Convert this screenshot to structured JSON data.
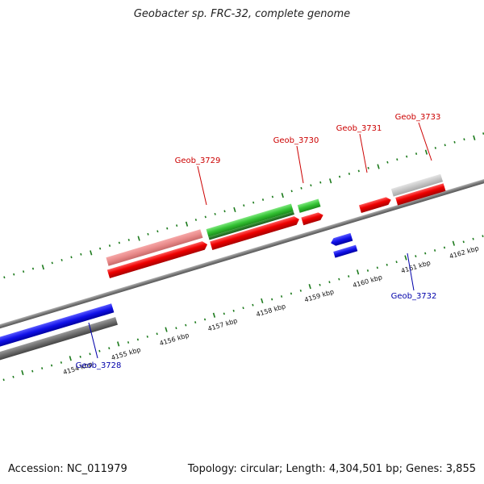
{
  "title": "Geobacter sp. FRC-32, complete genome",
  "footer": {
    "accession": "Accession: NC_011979",
    "summary": "Topology: circular; Length: 4,304,501 bp; Genes: 3,855"
  },
  "colors": {
    "tick": "#1c7a1c",
    "backbone": "#7a7a7a",
    "forward_label": "#cc0000",
    "reverse_label": "#0000aa"
  },
  "kbp_labels": [
    {
      "text": "4154 kbp",
      "kbp": 4154
    },
    {
      "text": "4155 kbp",
      "kbp": 4155
    },
    {
      "text": "4156 kbp",
      "kbp": 4156
    },
    {
      "text": "4157 kbp",
      "kbp": 4157
    },
    {
      "text": "4158 kbp",
      "kbp": 4158
    },
    {
      "text": "4159 kbp",
      "kbp": 4159
    },
    {
      "text": "4160 kbp",
      "kbp": 4160
    },
    {
      "text": "4161 kbp",
      "kbp": 4161
    },
    {
      "text": "4162 kbp",
      "kbp": 4162
    }
  ],
  "gene_labels": [
    {
      "name": "Geob_3728",
      "strand": "reverse"
    },
    {
      "name": "Geob_3729",
      "strand": "forward"
    },
    {
      "name": "Geob_3730",
      "strand": "forward"
    },
    {
      "name": "Geob_3731",
      "strand": "forward"
    },
    {
      "name": "Geob_3732",
      "strand": "reverse"
    },
    {
      "name": "Geob_3733",
      "strand": "forward"
    }
  ]
}
